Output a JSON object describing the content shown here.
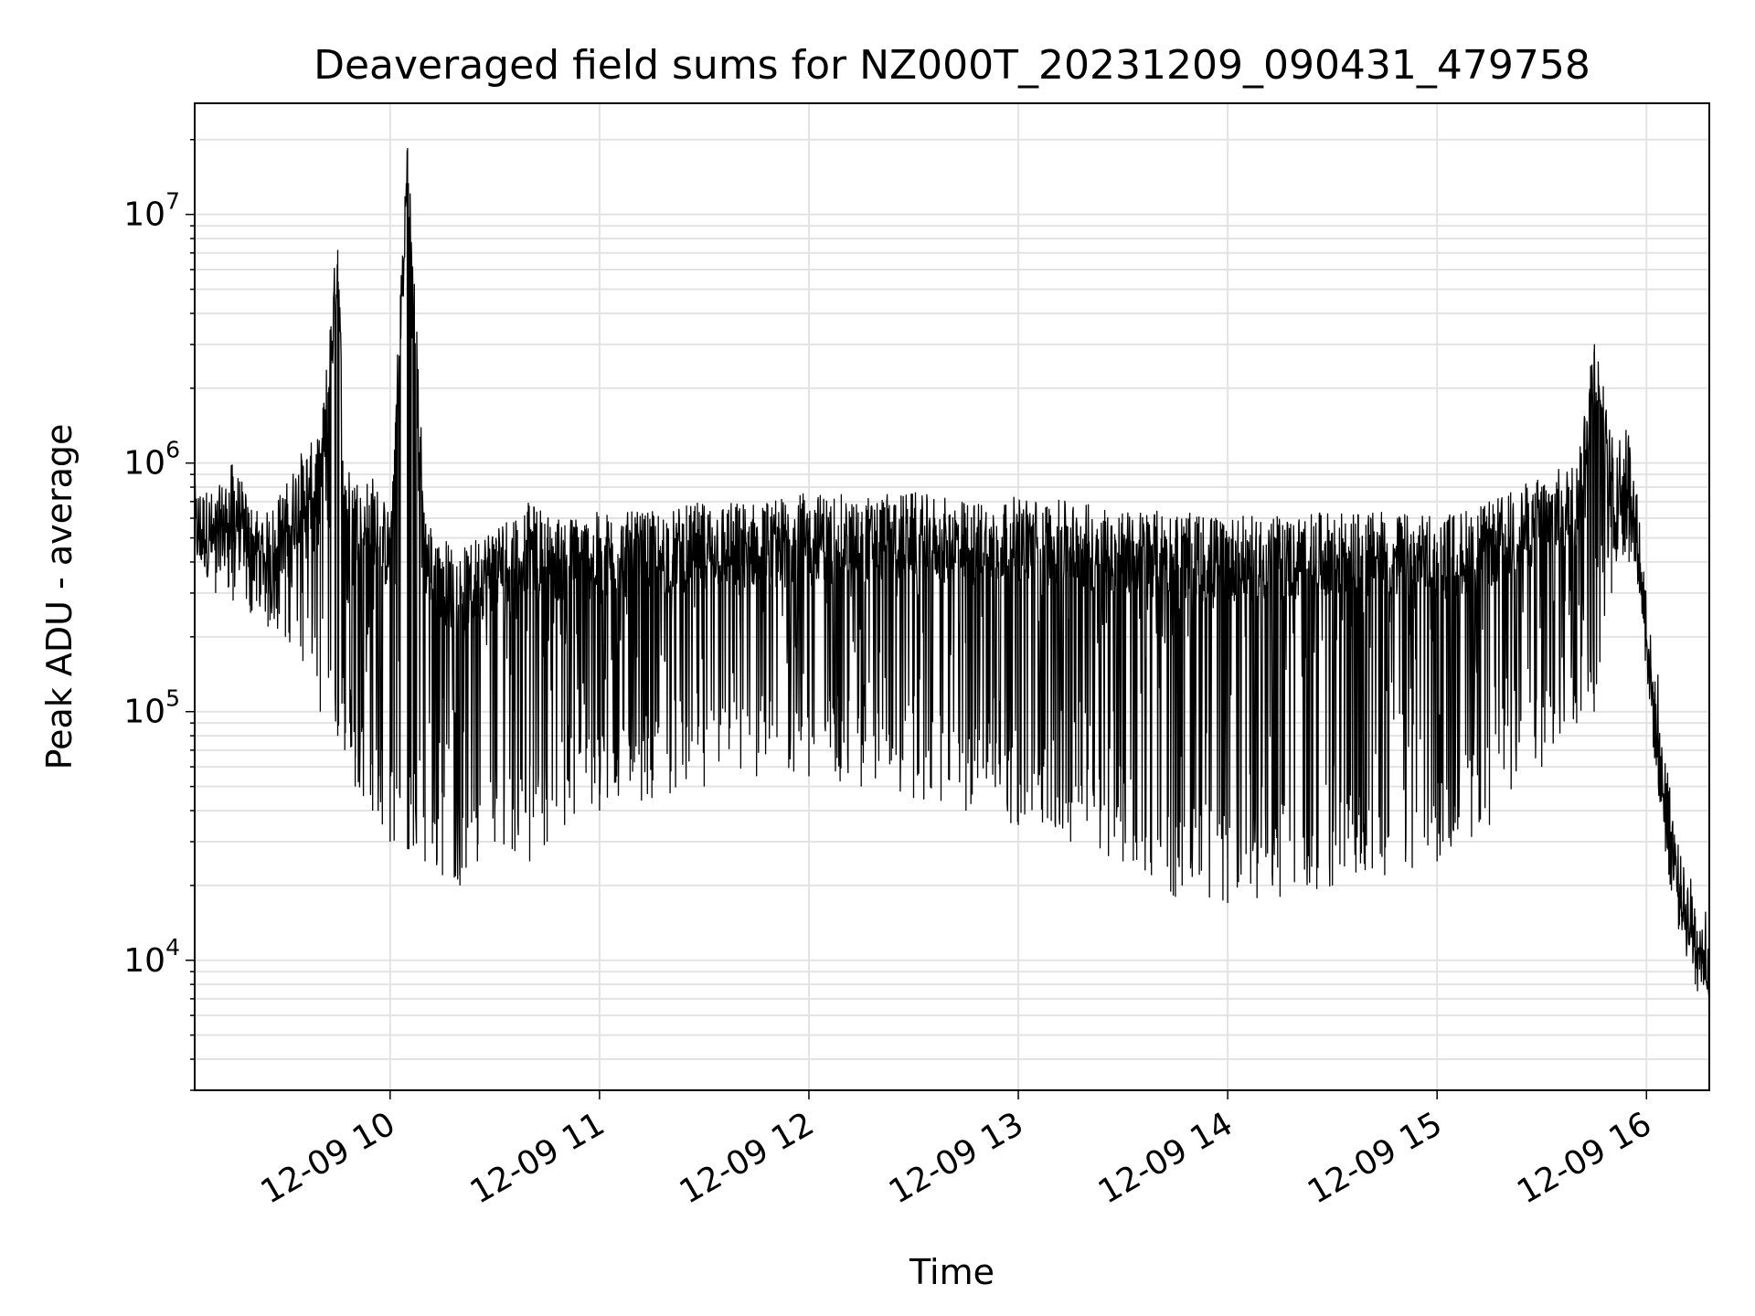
{
  "chart_data": {
    "type": "line",
    "title": "Deaveraged field sums for NZ000T_20231209_090431_479758",
    "xlabel": "Time",
    "ylabel": "Peak ADU - average",
    "y_scale": "log",
    "ylim": [
      3000,
      28000000
    ],
    "xlim": [
      "2023-12-09 09:04",
      "2023-12-09 16:18"
    ],
    "grid": true,
    "x_ticks": [
      "12-09 10",
      "12-09 11",
      "12-09 12",
      "12-09 13",
      "12-09 14",
      "12-09 15",
      "12-09 16"
    ],
    "y_ticks": [
      {
        "base": "10",
        "exp": "4",
        "value": 10000
      },
      {
        "base": "10",
        "exp": "5",
        "value": 100000
      },
      {
        "base": "10",
        "exp": "6",
        "value": 1000000
      },
      {
        "base": "10",
        "exp": "7",
        "value": 10000000
      }
    ],
    "series": [
      {
        "color": "#000000",
        "x": [
          "2023-12-09 09:04",
          "2023-12-09 09:10",
          "2023-12-09 09:15",
          "2023-12-09 09:20",
          "2023-12-09 09:25",
          "2023-12-09 09:30",
          "2023-12-09 09:35",
          "2023-12-09 09:40",
          "2023-12-09 09:45",
          "2023-12-09 09:47",
          "2023-12-09 09:50",
          "2023-12-09 09:55",
          "2023-12-09 10:00",
          "2023-12-09 10:05",
          "2023-12-09 10:10",
          "2023-12-09 10:15",
          "2023-12-09 10:20",
          "2023-12-09 10:25",
          "2023-12-09 10:30",
          "2023-12-09 10:35",
          "2023-12-09 10:40",
          "2023-12-09 10:45",
          "2023-12-09 10:50",
          "2023-12-09 11:00",
          "2023-12-09 11:15",
          "2023-12-09 11:30",
          "2023-12-09 11:45",
          "2023-12-09 12:00",
          "2023-12-09 12:15",
          "2023-12-09 12:30",
          "2023-12-09 12:45",
          "2023-12-09 13:00",
          "2023-12-09 13:15",
          "2023-12-09 13:30",
          "2023-12-09 13:45",
          "2023-12-09 14:00",
          "2023-12-09 14:15",
          "2023-12-09 14:30",
          "2023-12-09 14:45",
          "2023-12-09 15:00",
          "2023-12-09 15:15",
          "2023-12-09 15:30",
          "2023-12-09 15:40",
          "2023-12-09 15:45",
          "2023-12-09 15:50",
          "2023-12-09 15:55",
          "2023-12-09 15:58",
          "2023-12-09 16:02",
          "2023-12-09 16:06",
          "2023-12-09 16:10",
          "2023-12-09 16:14",
          "2023-12-09 16:18"
        ],
        "y": [
          650000,
          600000,
          800000,
          550000,
          500000,
          650000,
          900000,
          1000000,
          7200000,
          800000,
          700000,
          700000,
          500000,
          18500000,
          500000,
          400000,
          350000,
          400000,
          450000,
          500000,
          550000,
          500000,
          480000,
          500000,
          500000,
          550000,
          550000,
          600000,
          580000,
          600000,
          550000,
          580000,
          550000,
          520000,
          500000,
          480000,
          480000,
          500000,
          500000,
          480000,
          550000,
          700000,
          800000,
          2800000,
          1000000,
          1100000,
          500000,
          120000,
          40000,
          20000,
          15000,
          12000
        ],
        "y_low": [
          350000,
          300000,
          280000,
          250000,
          220000,
          200000,
          160000,
          100000,
          80000,
          70000,
          50000,
          40000,
          30000,
          28000,
          25000,
          22000,
          20000,
          25000,
          30000,
          28000,
          25000,
          30000,
          35000,
          40000,
          45000,
          50000,
          55000,
          55000,
          50000,
          45000,
          40000,
          35000,
          30000,
          25000,
          18000,
          17000,
          18000,
          20000,
          22000,
          25000,
          35000,
          60000,
          90000,
          100000,
          300000,
          400000,
          300000,
          100000,
          30000,
          15000,
          8000,
          5000
        ]
      }
    ]
  }
}
